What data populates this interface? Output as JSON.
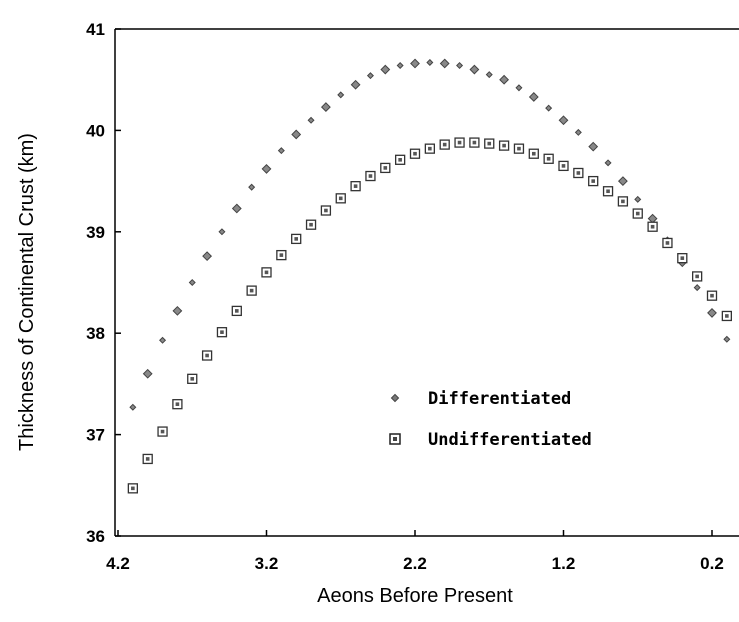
{
  "chart_data": {
    "type": "scatter",
    "xlabel": "Aeons Before Present",
    "ylabel": "Thickness of Continental Crust (km)",
    "xlim": [
      4.2,
      0.0
    ],
    "ylim": [
      36,
      41
    ],
    "x_reversed": true,
    "x_ticks": [
      "4.2",
      "3.2",
      "2.2",
      "1.2",
      "0.2"
    ],
    "x_tick_values": [
      4.2,
      3.2,
      2.2,
      1.2,
      0.2
    ],
    "y_ticks": [
      "36",
      "37",
      "38",
      "39",
      "40",
      "41"
    ],
    "y_tick_values": [
      36,
      37,
      38,
      39,
      40,
      41
    ],
    "grid": false,
    "legend_position": "lower-center",
    "series": [
      {
        "name": "Differentiated",
        "marker": "diamond",
        "color": "#555555",
        "x": [
          4.1,
          4.0,
          3.9,
          3.8,
          3.7,
          3.6,
          3.5,
          3.4,
          3.3,
          3.2,
          3.1,
          3.0,
          2.9,
          2.8,
          2.7,
          2.6,
          2.5,
          2.4,
          2.3,
          2.2,
          2.1,
          2.0,
          1.9,
          1.8,
          1.7,
          1.6,
          1.5,
          1.4,
          1.3,
          1.2,
          1.1,
          1.0,
          0.9,
          0.8,
          0.7,
          0.6,
          0.5,
          0.4,
          0.3,
          0.2,
          0.1
        ],
        "values": [
          37.27,
          37.6,
          37.93,
          38.22,
          38.5,
          38.76,
          39.0,
          39.23,
          39.44,
          39.62,
          39.8,
          39.96,
          40.1,
          40.23,
          40.35,
          40.45,
          40.54,
          40.6,
          40.64,
          40.66,
          40.67,
          40.66,
          40.64,
          40.6,
          40.55,
          40.5,
          40.42,
          40.33,
          40.22,
          40.1,
          39.98,
          39.84,
          39.68,
          39.5,
          39.32,
          39.13,
          38.92,
          38.7,
          38.45,
          38.2,
          37.94
        ]
      },
      {
        "name": "Undifferentiated",
        "marker": "square",
        "color": "#333333",
        "x": [
          4.1,
          4.0,
          3.9,
          3.8,
          3.7,
          3.6,
          3.5,
          3.4,
          3.3,
          3.2,
          3.1,
          3.0,
          2.9,
          2.8,
          2.7,
          2.6,
          2.5,
          2.4,
          2.3,
          2.2,
          2.1,
          2.0,
          1.9,
          1.8,
          1.7,
          1.6,
          1.5,
          1.4,
          1.3,
          1.2,
          1.1,
          1.0,
          0.9,
          0.8,
          0.7,
          0.6,
          0.5,
          0.4,
          0.3,
          0.2,
          0.1,
          0.0
        ],
        "values": [
          36.47,
          36.76,
          37.03,
          37.3,
          37.55,
          37.78,
          38.01,
          38.22,
          38.42,
          38.6,
          38.77,
          38.93,
          39.07,
          39.21,
          39.33,
          39.45,
          39.55,
          39.63,
          39.71,
          39.77,
          39.82,
          39.86,
          39.88,
          39.88,
          39.87,
          39.85,
          39.82,
          39.77,
          39.72,
          39.65,
          39.58,
          39.5,
          39.4,
          39.3,
          39.18,
          39.05,
          38.89,
          38.74,
          38.56,
          38.37,
          38.17,
          37.96
        ]
      }
    ]
  }
}
